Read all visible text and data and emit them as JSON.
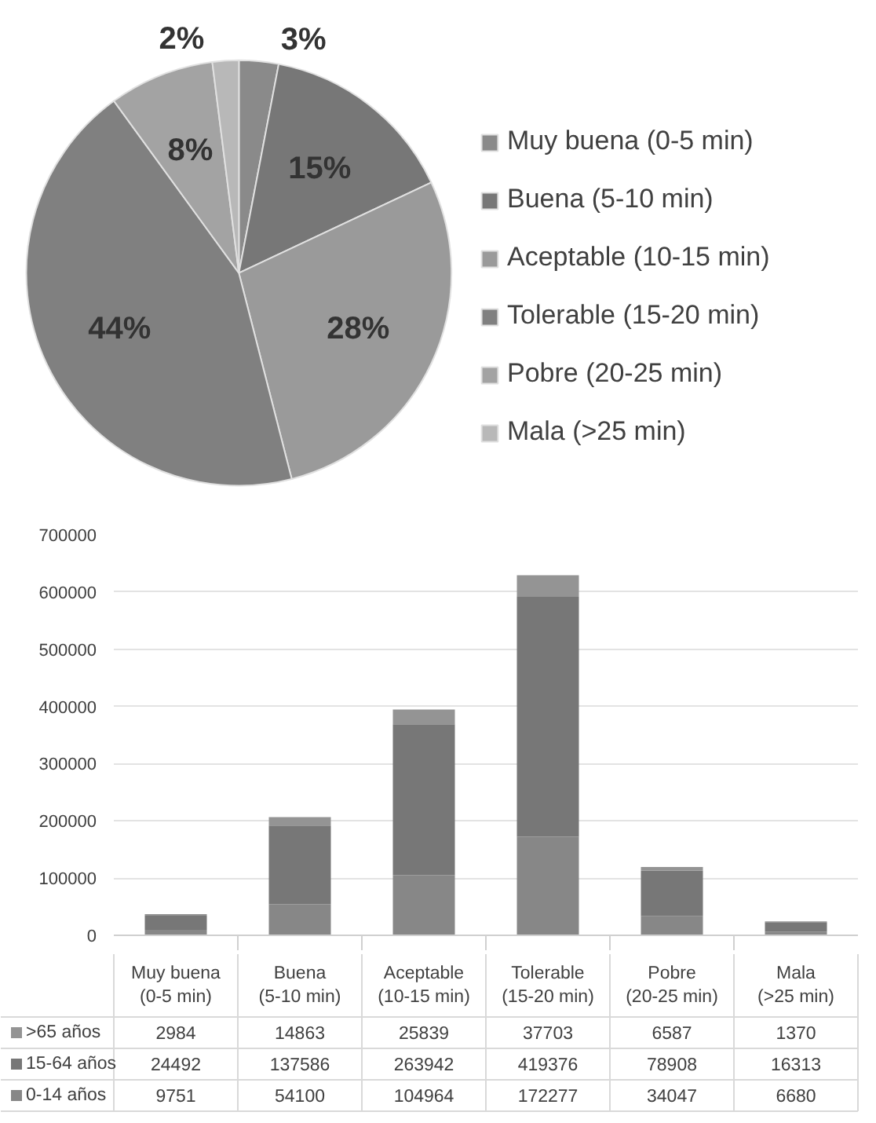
{
  "chart_data": [
    {
      "type": "pie",
      "categories": [
        "Muy buena (0-5 min)",
        "Buena (5-10 min)",
        "Aceptable (10-15 min)",
        "Tolerable (15-20 min)",
        "Pobre (20-25 min)",
        "Mala (>25 min)"
      ],
      "values": [
        3,
        15,
        28,
        44,
        8,
        2
      ],
      "colors": [
        "#8a8a8a",
        "#777777",
        "#9a9a9a",
        "#808080",
        "#a3a3a3",
        "#b8b8b8"
      ],
      "value_labels": [
        "3%",
        "15%",
        "28%",
        "44%",
        "8%",
        "2%"
      ],
      "legend": "right"
    },
    {
      "type": "bar",
      "stacked": true,
      "categories": [
        "Muy buena (0-5 min)",
        "Buena (5-10 min)",
        "Aceptable (10-15 min)",
        "Tolerable (15-20 min)",
        "Pobre (20-25 min)",
        "Mala (>25 min)"
      ],
      "series": [
        {
          "name": "0-14 años",
          "color": "#878787",
          "values": [
            9751,
            54100,
            104964,
            172277,
            34047,
            6680
          ]
        },
        {
          "name": "15-64 años",
          "color": "#777777",
          "values": [
            24492,
            137586,
            263942,
            419376,
            78908,
            16313
          ]
        },
        {
          "name": ">65 años",
          "color": "#949494",
          "values": [
            2984,
            14863,
            25839,
            37703,
            6587,
            1370
          ]
        }
      ],
      "ylim": [
        0,
        700000
      ],
      "yticks": [
        0,
        100000,
        200000,
        300000,
        400000,
        500000,
        600000,
        700000
      ],
      "grid": "y",
      "data_labels": true,
      "legend": "bottom",
      "tick_labels": "y"
    }
  ]
}
